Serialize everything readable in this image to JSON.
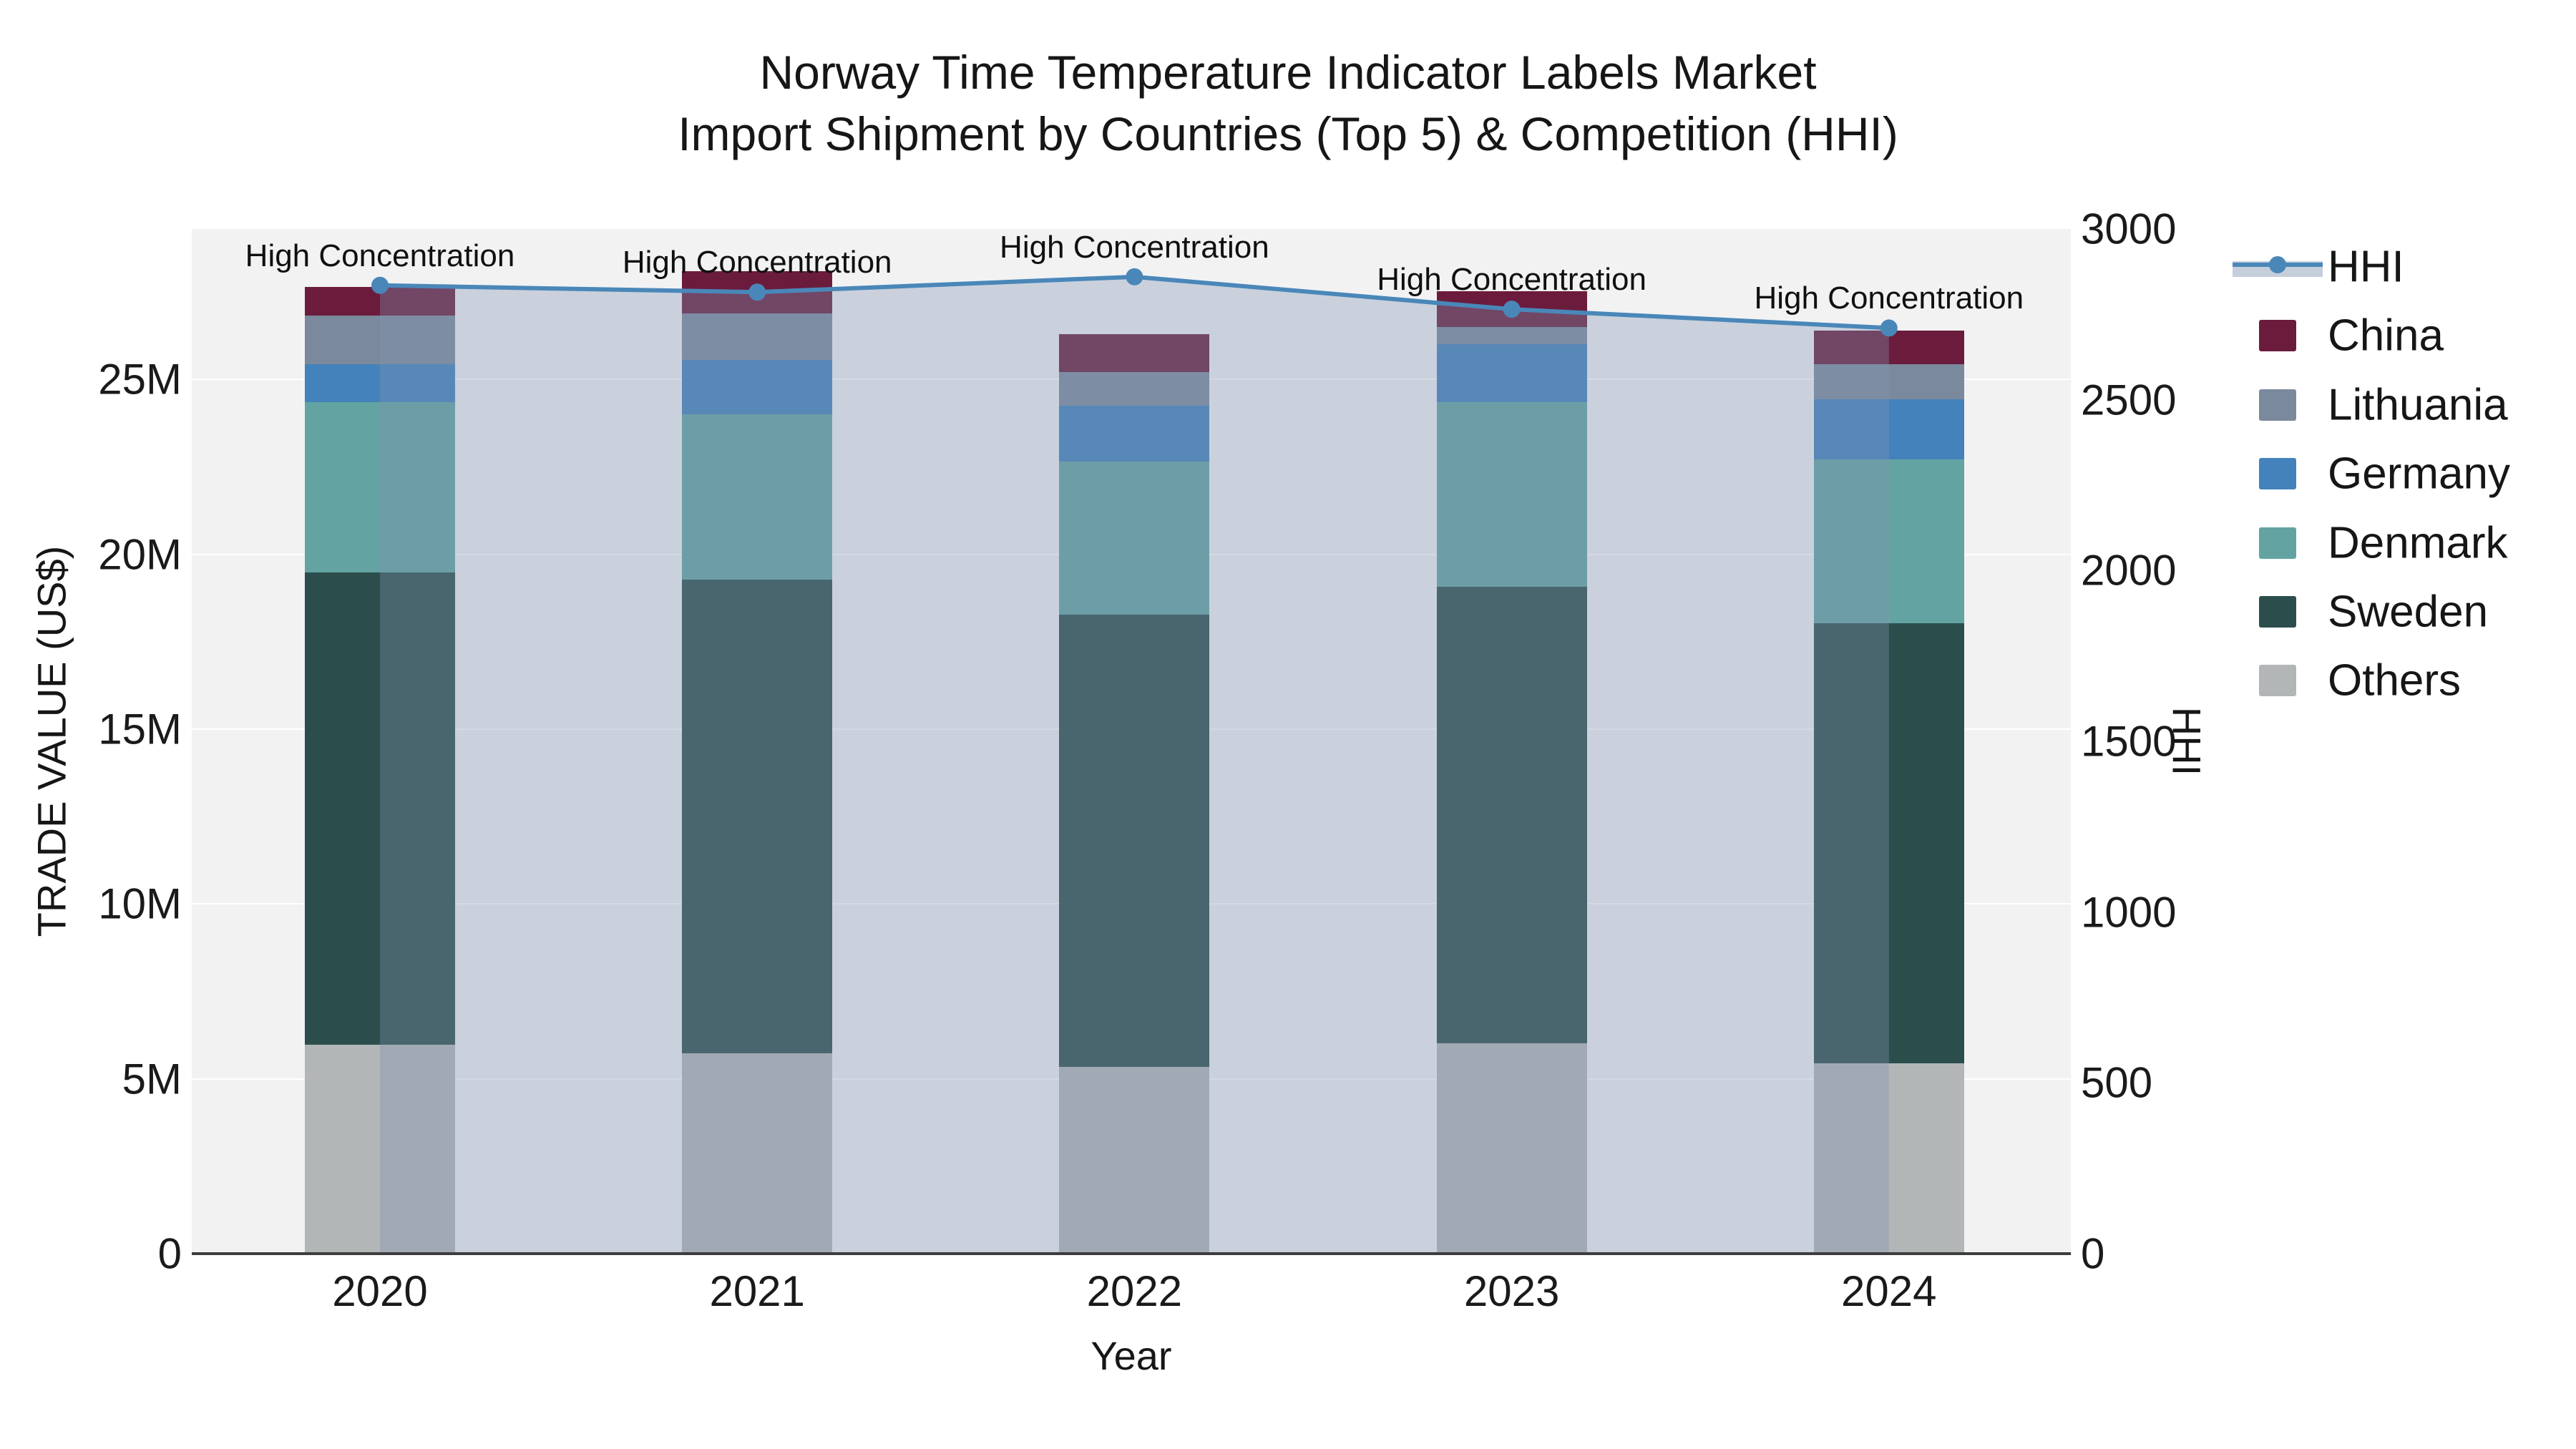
{
  "title": {
    "line1": "Norway Time Temperature Indicator Labels Market",
    "line2": "Import Shipment by Countries (Top 5) & Competition (HHI)"
  },
  "legend": {
    "items": [
      {
        "label": "HHI",
        "type": "line",
        "color": "#4a87b9",
        "fill": "#c6cedb"
      },
      {
        "label": "China",
        "type": "swatch",
        "color": "#6b1c3c"
      },
      {
        "label": "Lithuania",
        "type": "swatch",
        "color": "#7b899d"
      },
      {
        "label": "Germany",
        "type": "swatch",
        "color": "#4382ba"
      },
      {
        "label": "Denmark",
        "type": "swatch",
        "color": "#63a4a2"
      },
      {
        "label": "Sweden",
        "type": "swatch",
        "color": "#2b4e4c"
      },
      {
        "label": "Others",
        "type": "swatch",
        "color": "#b3b6b6"
      }
    ]
  },
  "chart_data": {
    "type": "bar+line",
    "title": "Norway Time Temperature Indicator Labels Market Import Shipment by Countries (Top 5) & Competition (HHI)",
    "categories": [
      "2020",
      "2021",
      "2022",
      "2023",
      "2024"
    ],
    "stack_order_note": "series listed bottom-to-top of the stacked bars, values in millions US$",
    "series": [
      {
        "name": "Others",
        "color": "#b3b6b6",
        "values": [
          5.98,
          5.72,
          5.34,
          6.02,
          5.44
        ]
      },
      {
        "name": "Sweden",
        "color": "#2b4e4c",
        "values": [
          13.5,
          13.56,
          12.93,
          13.04,
          12.59
        ]
      },
      {
        "name": "Denmark",
        "color": "#63a4a2",
        "values": [
          4.86,
          4.72,
          4.38,
          5.28,
          4.68
        ]
      },
      {
        "name": "Germany",
        "color": "#4382ba",
        "values": [
          1.1,
          1.56,
          1.59,
          1.66,
          1.73
        ]
      },
      {
        "name": "Lithuania",
        "color": "#7b899d",
        "values": [
          1.39,
          1.33,
          0.96,
          0.49,
          1.0
        ]
      },
      {
        "name": "China",
        "color": "#6b1c3c",
        "values": [
          0.82,
          1.2,
          1.09,
          1.04,
          0.95
        ]
      }
    ],
    "line_series": {
      "name": "HHI",
      "axis": "right",
      "color": "#4a87b9",
      "area_fill": "rgba(130,148,178,0.35)",
      "values": [
        2835,
        2815,
        2860,
        2765,
        2710
      ]
    },
    "annotations": [
      {
        "x": "2020",
        "text": "High Concentration"
      },
      {
        "x": "2021",
        "text": "High Concentration"
      },
      {
        "x": "2022",
        "text": "High Concentration"
      },
      {
        "x": "2023",
        "text": "High Concentration"
      },
      {
        "x": "2024",
        "text": "High Concentration"
      }
    ],
    "y_left": {
      "title": "TRADE VALUE (US$)",
      "unit": "M US$",
      "range": [
        0,
        29.3
      ],
      "tick_values": [
        0,
        5,
        10,
        15,
        20,
        25
      ],
      "tick_labels": [
        "0",
        "5M",
        "10M",
        "15M",
        "20M",
        "25M"
      ]
    },
    "y_right": {
      "title": "HHI",
      "range": [
        0,
        3000
      ],
      "tick_values": [
        0,
        500,
        1000,
        1500,
        2000,
        2500,
        3000
      ],
      "tick_labels": [
        "0",
        "500",
        "1000",
        "1500",
        "2000",
        "2500",
        "3000"
      ]
    },
    "x": {
      "title": "Year"
    },
    "legend_position": "right",
    "grid": "horizontal-white"
  }
}
